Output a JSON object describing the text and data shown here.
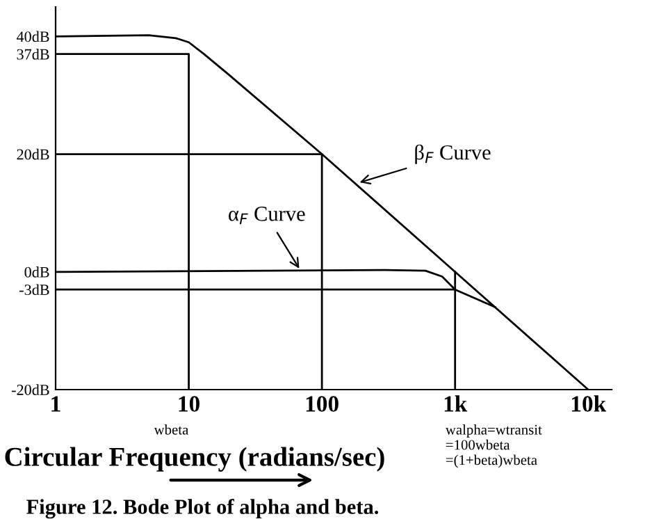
{
  "chart_data": {
    "type": "line",
    "xlabel": "Circular Frequency (radians/sec)",
    "log": "x",
    "grid": false,
    "xlim": [
      1,
      15000
    ],
    "ylim": [
      -20,
      45
    ],
    "xticks": [
      {
        "value": 1,
        "label": "1"
      },
      {
        "value": 10,
        "label": "10"
      },
      {
        "value": 100,
        "label": "100"
      },
      {
        "value": 1000,
        "label": "1k"
      },
      {
        "value": 10000,
        "label": "10k"
      }
    ],
    "yticks": [
      {
        "value": 40,
        "label": "40dB"
      },
      {
        "value": 37,
        "label": "37dB"
      },
      {
        "value": 20,
        "label": "20dB"
      },
      {
        "value": 0,
        "label": "0dB"
      },
      {
        "value": -3,
        "label": "-3dB"
      },
      {
        "value": -20,
        "label": "-20dB"
      }
    ],
    "series": [
      {
        "color": "#000000",
        "x": [
          1,
          5,
          8,
          10,
          13,
          20,
          100,
          1000,
          10000
        ],
        "values": [
          40,
          40.2,
          39.7,
          39,
          37,
          33.5,
          20,
          0,
          -20
        ]
      },
      {
        "color": "#000000",
        "x": [
          1,
          300,
          600,
          800,
          1000,
          2000
        ],
        "values": [
          0,
          0.3,
          0.2,
          -0.8,
          -3,
          -6
        ]
      },
      {
        "color": "#000000",
        "x": [
          1,
          10,
          10
        ],
        "values": [
          37,
          37,
          -20
        ]
      },
      {
        "color": "#000000",
        "x": [
          1,
          100,
          100
        ],
        "values": [
          20,
          20,
          -20
        ]
      },
      {
        "color": "#000000",
        "x": [
          1,
          1000
        ],
        "values": [
          -3,
          -3
        ]
      },
      {
        "color": "#000000",
        "x": [
          1000,
          1000
        ],
        "values": [
          0,
          -20
        ]
      }
    ],
    "annotations": [
      {
        "text": "β$_{F}$ Curve",
        "x": 180,
        "y": 15
      },
      {
        "text": "α$_{F}$ Curve",
        "x": 70,
        "y": 0
      },
      {
        "text": "wbeta",
        "x": 10,
        "y": -20
      },
      {
        "text": "walpha=wtransit\n=100wbeta\n=(1+beta)wbeta",
        "x": 1000,
        "y": -20
      },
      "Figure 12. Bode Plot of alpha and beta."
    ]
  }
}
